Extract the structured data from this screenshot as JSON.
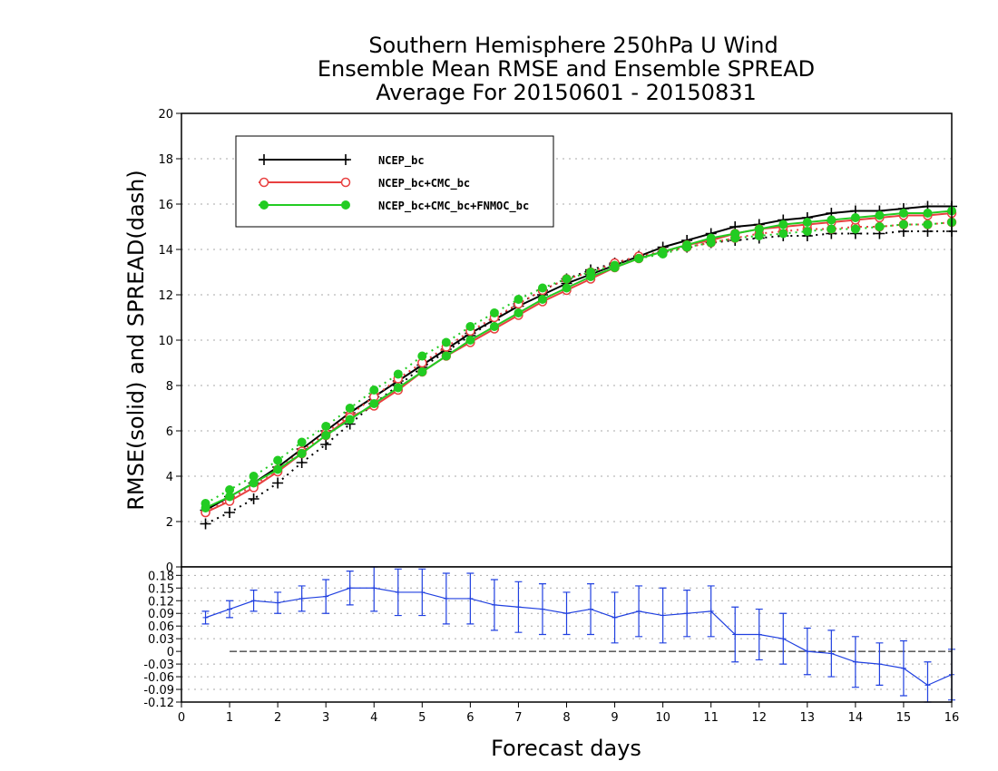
{
  "chart_data": {
    "title": [
      "Southern Hemisphere 250hPa U Wind",
      "Ensemble Mean RMSE and Ensemble SPREAD",
      "Average For 20150601 - 20150831"
    ],
    "top_panel": {
      "type": "line",
      "ylabel": "RMSE(solid) and SPREAD(dash)",
      "xlim": [
        0,
        16
      ],
      "ylim": [
        0,
        20
      ],
      "yticks": [
        0,
        2,
        4,
        6,
        8,
        10,
        12,
        14,
        16,
        18,
        20
      ],
      "grid": true,
      "legend_placement": "top-left",
      "x": [
        0.5,
        1.0,
        1.5,
        2.0,
        2.5,
        3.0,
        3.5,
        4.0,
        4.5,
        5.0,
        5.5,
        6.0,
        6.5,
        7.0,
        7.5,
        8.0,
        8.5,
        9.0,
        9.5,
        10.0,
        10.5,
        11.0,
        11.5,
        12.0,
        12.5,
        13.0,
        13.5,
        14.0,
        14.5,
        15.0,
        15.5,
        16.0
      ],
      "series": [
        {
          "name": "NCEP_bc",
          "color": "#000000",
          "marker": "plus",
          "rmse": [
            2.5,
            3.1,
            3.7,
            4.4,
            5.2,
            6.0,
            6.8,
            7.5,
            8.2,
            8.9,
            9.6,
            10.3,
            10.9,
            11.5,
            12.0,
            12.5,
            12.9,
            13.3,
            13.7,
            14.1,
            14.4,
            14.7,
            15.0,
            15.1,
            15.3,
            15.4,
            15.6,
            15.7,
            15.7,
            15.8,
            15.9,
            15.9
          ],
          "spread": [
            1.9,
            2.4,
            3.0,
            3.7,
            4.6,
            5.4,
            6.3,
            7.2,
            8.0,
            8.8,
            9.5,
            10.2,
            10.9,
            11.6,
            12.2,
            12.7,
            13.1,
            13.4,
            13.7,
            13.9,
            14.1,
            14.3,
            14.4,
            14.5,
            14.6,
            14.6,
            14.7,
            14.7,
            14.7,
            14.8,
            14.8,
            14.8
          ]
        },
        {
          "name": "NCEP_bc+CMC_bc",
          "color": "#e84040",
          "marker": "open-circle",
          "rmse": [
            2.4,
            2.9,
            3.5,
            4.2,
            5.0,
            5.8,
            6.6,
            7.1,
            7.8,
            8.6,
            9.3,
            9.9,
            10.5,
            11.1,
            11.7,
            12.2,
            12.7,
            13.2,
            13.6,
            13.9,
            14.2,
            14.4,
            14.7,
            14.9,
            15.0,
            15.1,
            15.2,
            15.3,
            15.4,
            15.5,
            15.5,
            15.6
          ],
          "spread": [
            2.4,
            3.0,
            3.6,
            4.3,
            5.1,
            5.9,
            6.7,
            7.5,
            8.3,
            9.0,
            9.7,
            10.4,
            11.0,
            11.6,
            12.2,
            12.7,
            13.0,
            13.4,
            13.7,
            13.9,
            14.1,
            14.3,
            14.5,
            14.7,
            14.8,
            14.9,
            14.9,
            15.0,
            15.0,
            15.1,
            15.1,
            15.2
          ]
        },
        {
          "name": "NCEP_bc+CMC_bc+FNMOC_bc",
          "color": "#22cc22",
          "marker": "filled-circle",
          "rmse": [
            2.6,
            3.1,
            3.7,
            4.3,
            5.0,
            5.8,
            6.5,
            7.2,
            7.9,
            8.6,
            9.3,
            10.0,
            10.6,
            11.2,
            11.8,
            12.3,
            12.8,
            13.2,
            13.6,
            13.9,
            14.2,
            14.5,
            14.7,
            14.9,
            15.1,
            15.2,
            15.3,
            15.4,
            15.5,
            15.6,
            15.6,
            15.7
          ],
          "spread": [
            2.8,
            3.4,
            4.0,
            4.7,
            5.5,
            6.2,
            7.0,
            7.8,
            8.5,
            9.3,
            9.9,
            10.6,
            11.2,
            11.8,
            12.3,
            12.7,
            13.0,
            13.3,
            13.6,
            13.8,
            14.1,
            14.3,
            14.5,
            14.6,
            14.7,
            14.8,
            14.9,
            14.9,
            15.0,
            15.1,
            15.1,
            15.2
          ]
        }
      ]
    },
    "bottom_panel": {
      "type": "line",
      "ylim": [
        -0.12,
        0.2
      ],
      "yticks": [
        -0.12,
        -0.09,
        -0.06,
        -0.03,
        0,
        0.03,
        0.06,
        0.09,
        0.12,
        0.15,
        0.18
      ],
      "ytick_labels": [
        "-0.12",
        "-0.09",
        "-0.06",
        "-0.03",
        "0",
        "0.03",
        "0.06",
        "0.09",
        "0.12",
        "0.15",
        "0.18"
      ],
      "grid": true,
      "color": "#2040e0",
      "x": [
        0.5,
        1.0,
        1.5,
        2.0,
        2.5,
        3.0,
        3.5,
        4.0,
        4.5,
        5.0,
        5.5,
        6.0,
        6.5,
        7.0,
        7.5,
        8.0,
        8.5,
        9.0,
        9.5,
        10.0,
        10.5,
        11.0,
        11.5,
        12.0,
        12.5,
        13.0,
        13.5,
        14.0,
        14.5,
        15.0,
        15.5,
        16.0
      ],
      "values": [
        0.08,
        0.1,
        0.12,
        0.115,
        0.125,
        0.13,
        0.15,
        0.15,
        0.14,
        0.14,
        0.125,
        0.125,
        0.11,
        0.105,
        0.1,
        0.09,
        0.1,
        0.08,
        0.095,
        0.085,
        0.09,
        0.095,
        0.04,
        0.04,
        0.03,
        0.0,
        -0.005,
        -0.025,
        -0.03,
        -0.04,
        -0.08,
        -0.055
      ],
      "err_half": [
        0.015,
        0.02,
        0.025,
        0.025,
        0.03,
        0.04,
        0.04,
        0.055,
        0.055,
        0.055,
        0.06,
        0.06,
        0.06,
        0.06,
        0.06,
        0.05,
        0.06,
        0.06,
        0.06,
        0.065,
        0.055,
        0.06,
        0.065,
        0.06,
        0.06,
        0.055,
        0.055,
        0.06,
        0.05,
        0.065,
        0.055,
        0.06
      ]
    },
    "x_axis": {
      "label": "Forecast days",
      "ticks": [
        0,
        1,
        2,
        3,
        4,
        5,
        6,
        7,
        8,
        9,
        10,
        11,
        12,
        13,
        14,
        15,
        16
      ]
    }
  }
}
